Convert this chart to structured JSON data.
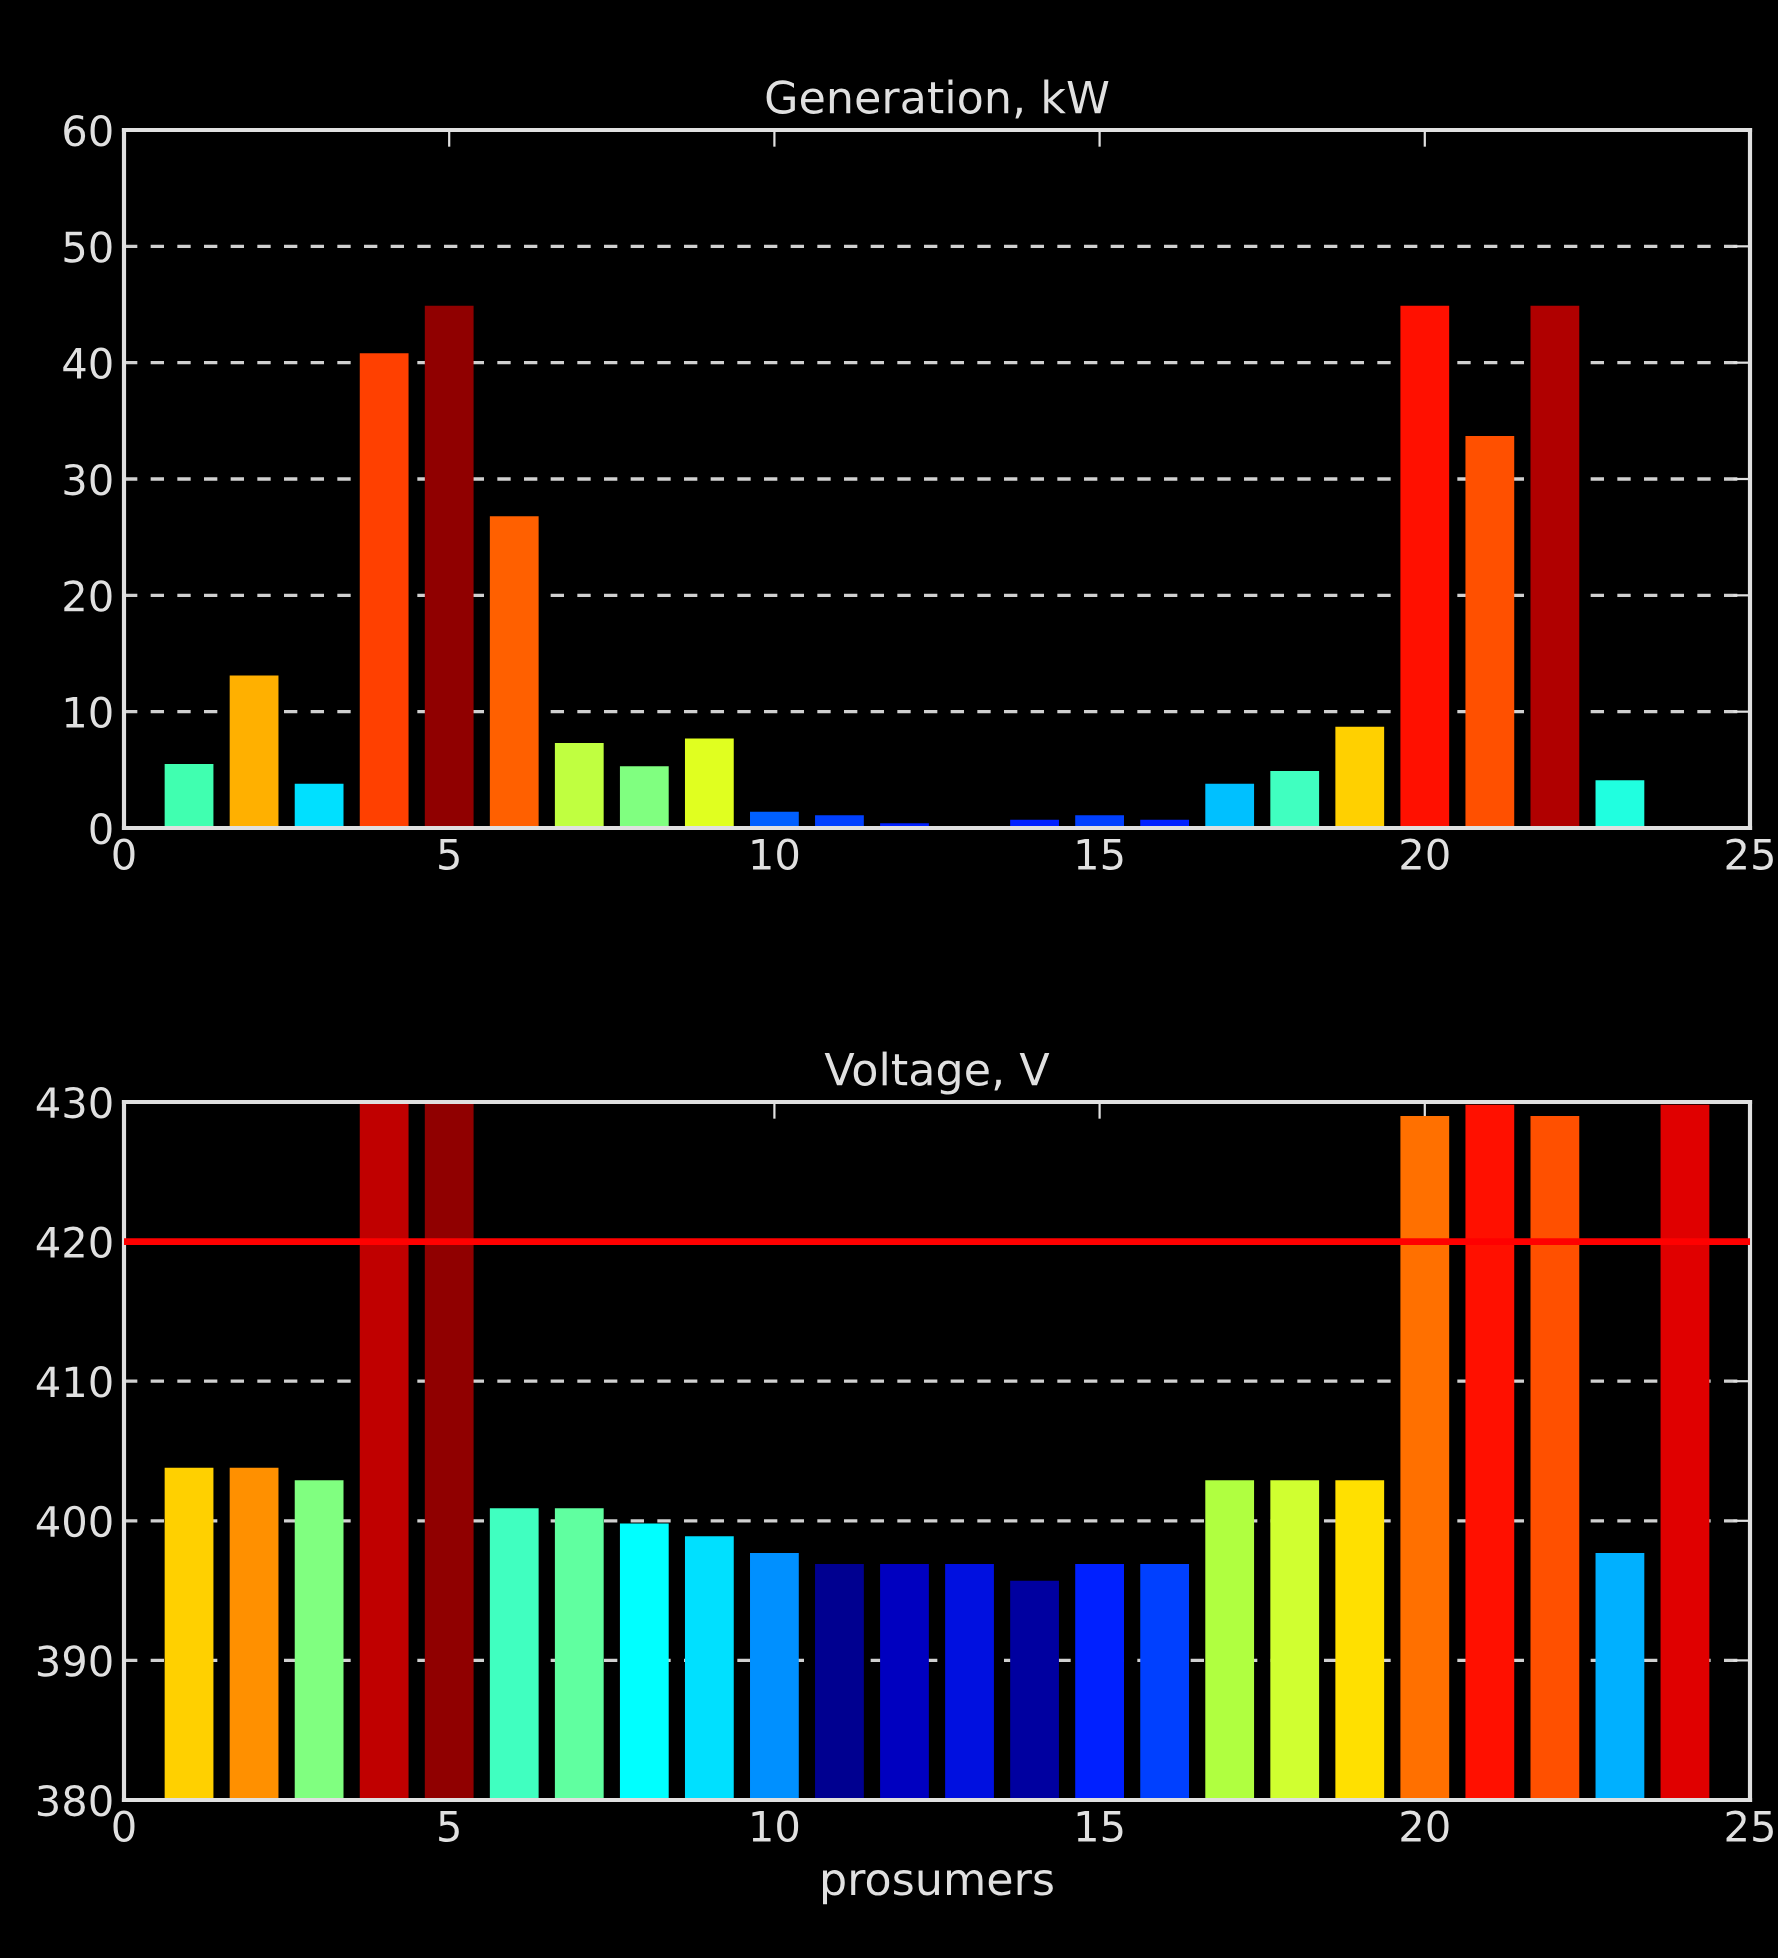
{
  "chart_data": [
    {
      "type": "bar",
      "title": "Generation, kW",
      "x": [
        1,
        2,
        3,
        4,
        5,
        6,
        7,
        8,
        9,
        10,
        11,
        12,
        13,
        14,
        15,
        16,
        17,
        18,
        19,
        20,
        21,
        22,
        23
      ],
      "values": [
        5.5,
        13.1,
        3.8,
        40.8,
        44.9,
        26.8,
        7.3,
        5.3,
        7.7,
        1.4,
        1.1,
        0.4,
        0,
        0.7,
        1.1,
        0.7,
        3.8,
        4.9,
        8.7,
        44.9,
        33.7,
        44.9,
        4.1
      ],
      "colors": [
        "#40ffb0",
        "#ffb000",
        "#00e0ff",
        "#ff4000",
        "#900000",
        "#ff6000",
        "#c0ff40",
        "#80ff80",
        "#e0ff20",
        "#0060ff",
        "#0040ff",
        "#0020ff",
        "#0000c0",
        "#0020ff",
        "#0040ff",
        "#0020ff",
        "#00c0ff",
        "#40ffc0",
        "#ffd000",
        "#ff1000",
        "#ff5000",
        "#b00000",
        "#20ffe0"
      ],
      "xlim": [
        0,
        25
      ],
      "xticks": [
        0,
        5,
        10,
        15,
        20,
        25
      ],
      "ylim": [
        0,
        60
      ],
      "yticks": [
        0,
        10,
        20,
        30,
        40,
        50,
        60
      ],
      "grid": "y"
    },
    {
      "type": "bar",
      "title": "Voltage, V",
      "xlabel": "prosumers",
      "x": [
        1,
        2,
        3,
        4,
        5,
        6,
        7,
        8,
        9,
        10,
        11,
        12,
        13,
        14,
        15,
        16,
        17,
        18,
        19,
        20,
        21,
        22,
        23,
        24
      ],
      "values": [
        403.8,
        403.8,
        402.9,
        430,
        430,
        400.9,
        400.9,
        399.8,
        398.9,
        397.7,
        396.9,
        396.9,
        396.9,
        395.7,
        396.9,
        396.9,
        402.9,
        402.9,
        402.9,
        429.0,
        429.8,
        429.0,
        397.7,
        429.8
      ],
      "colors": [
        "#ffd000",
        "#ff9000",
        "#80ff80",
        "#c00000",
        "#900000",
        "#40ffc0",
        "#60ffa0",
        "#00ffff",
        "#00e0ff",
        "#0090ff",
        "#000090",
        "#0000c0",
        "#0010e0",
        "#0000a0",
        "#0020ff",
        "#0040ff",
        "#b0ff40",
        "#d0ff30",
        "#ffe000",
        "#ff7000",
        "#ff1000",
        "#ff5000",
        "#00b0ff",
        "#e00000"
      ],
      "xlim": [
        0,
        25
      ],
      "xticks": [
        0,
        5,
        10,
        15,
        20,
        25
      ],
      "ylim": [
        380,
        430
      ],
      "yticks": [
        380,
        390,
        400,
        410,
        420,
        430
      ],
      "grid": "y",
      "ref_lines": [
        {
          "axis": "y",
          "value": 420,
          "color": "#ff0000"
        }
      ]
    }
  ]
}
